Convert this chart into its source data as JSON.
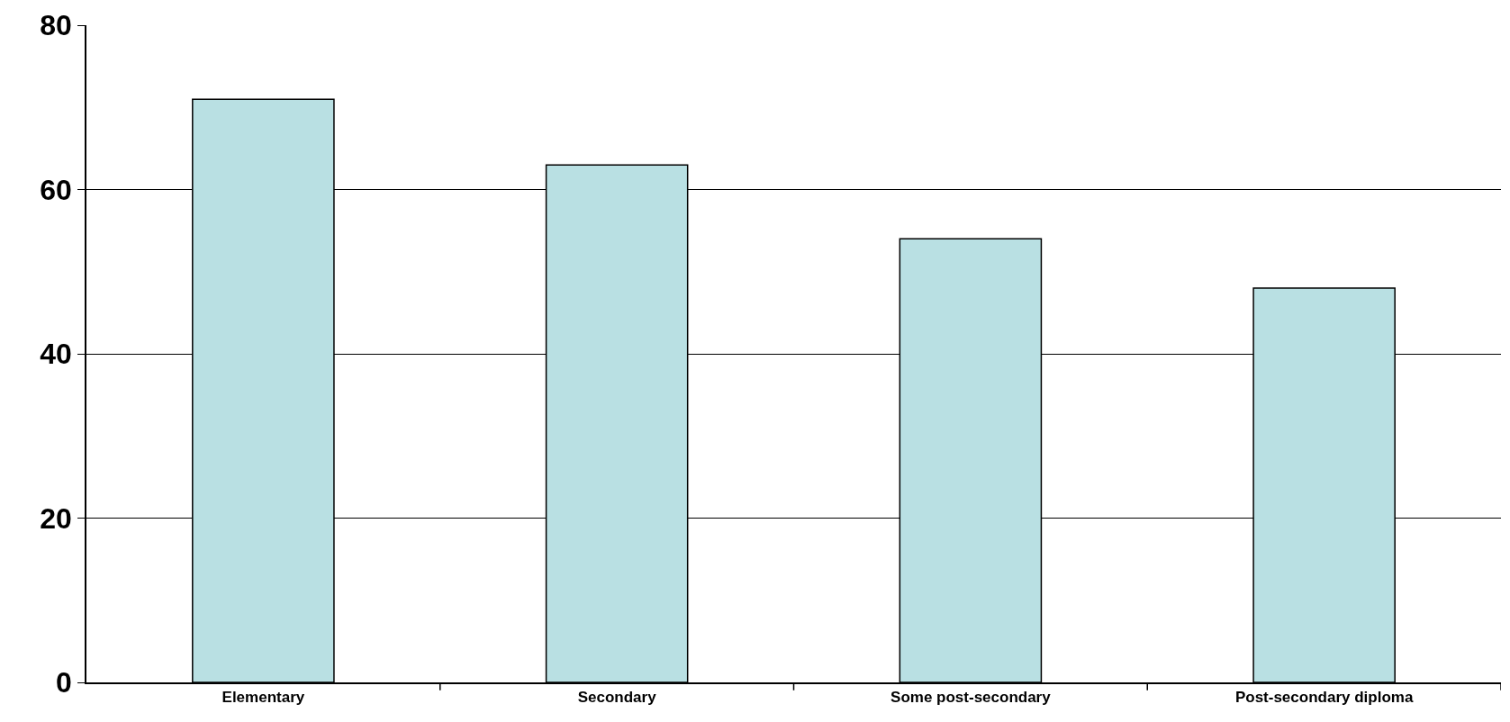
{
  "chart_data": {
    "type": "bar",
    "categories": [
      "Elementary",
      "Secondary",
      "Some post-secondary",
      "Post-secondary diploma"
    ],
    "values": [
      71,
      63,
      54,
      48
    ],
    "color": "#b9e0e3",
    "ylim": [
      0,
      80
    ],
    "yticks": [
      0,
      20,
      40,
      60,
      80
    ],
    "grid": "y"
  }
}
